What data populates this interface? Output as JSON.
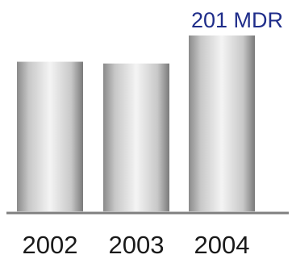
{
  "chart_data": {
    "type": "bar",
    "categories": [
      "2002",
      "2003",
      "2004"
    ],
    "values": [
      171,
      169,
      201
    ],
    "ylim": [
      0,
      201
    ],
    "title": "",
    "xlabel": "",
    "ylabel": "",
    "grid": false,
    "legend": "none",
    "data_labels": [
      {
        "index": 2,
        "text": "201 MDR"
      }
    ],
    "colors": {
      "bar_light": "#f2f2f2",
      "bar_mid": "#c4c4c4",
      "bar_dark": "#7a7a7a",
      "axis": "#7f7f7f",
      "tick_text": "#1a1a1a",
      "data_label_text": "#1f2d8a"
    }
  }
}
